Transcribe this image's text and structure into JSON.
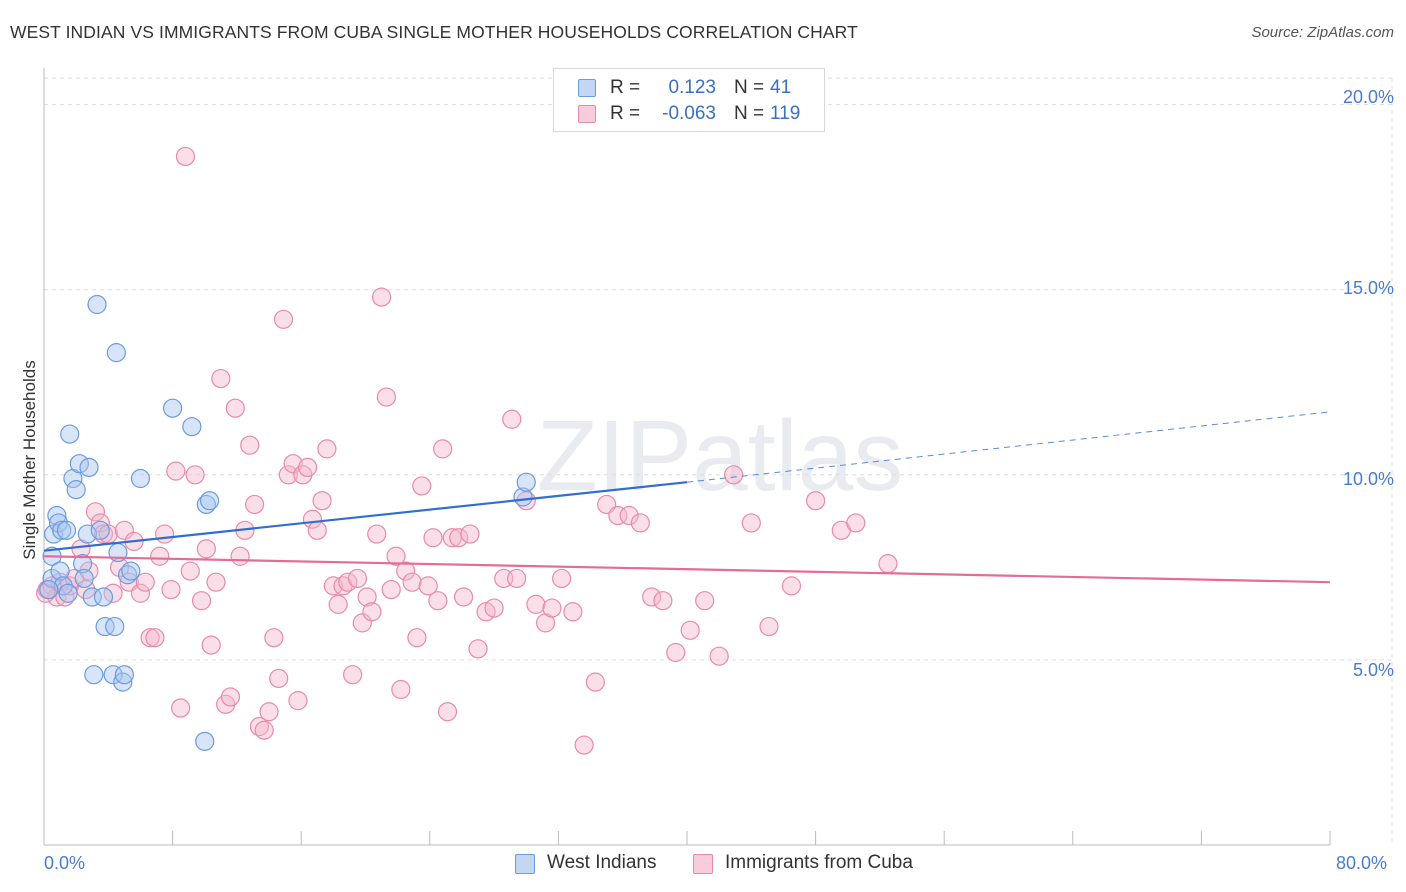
{
  "title": "WEST INDIAN VS IMMIGRANTS FROM CUBA SINGLE MOTHER HOUSEHOLDS CORRELATION CHART",
  "source": "Source: ZipAtlas.com",
  "watermark": "ZIPatlas",
  "colors": {
    "blue_fill": "#a9c6f0",
    "blue_stroke": "#6b9be0",
    "blue_line": "#2f6fd0",
    "pink_fill": "#f5b8cc",
    "pink_stroke": "#e88aaa",
    "pink_line": "#e46c95",
    "grid": "#dddddd",
    "tick_text": "#4a7bd0"
  },
  "legend": {
    "rows": [
      {
        "r_label": "R =",
        "r_value": "0.123",
        "n_label": "N =",
        "n_value": "41"
      },
      {
        "r_label": "R =",
        "r_value": "-0.063",
        "n_label": "N =",
        "n_value": "119"
      }
    ]
  },
  "bottom_legend": [
    "West Indians",
    "Immigrants from Cuba"
  ],
  "chart_data": {
    "type": "scatter",
    "title": "WEST INDIAN VS IMMIGRANTS FROM CUBA SINGLE MOTHER HOUSEHOLDS CORRELATION CHART",
    "xlabel": "",
    "ylabel": "Single Mother Households",
    "xlim": [
      0,
      80
    ],
    "ylim": [
      0,
      20.8
    ],
    "x_tick_labels": [
      "0.0%",
      "80.0%"
    ],
    "y_ticks": [
      5,
      10,
      15,
      20
    ],
    "y_tick_labels": [
      "5.0%",
      "10.0%",
      "15.0%",
      "20.0%"
    ],
    "grid": true,
    "legend_placement": "top-center",
    "series": [
      {
        "name": "West Indians",
        "R": 0.123,
        "N": 41,
        "trend": {
          "x0": 0,
          "y0": 7.95,
          "x1": 40,
          "y1": 9.8,
          "dashed_to_x": 80,
          "dashed_to_y": 11.7
        },
        "points": [
          [
            0.5,
            7.2
          ],
          [
            0.5,
            7.8
          ],
          [
            0.6,
            8.4
          ],
          [
            0.8,
            8.9
          ],
          [
            0.9,
            8.7
          ],
          [
            1.0,
            7.4
          ],
          [
            1.1,
            8.5
          ],
          [
            1.2,
            7.0
          ],
          [
            1.4,
            8.5
          ],
          [
            1.5,
            6.8
          ],
          [
            1.6,
            11.1
          ],
          [
            1.8,
            9.9
          ],
          [
            2.0,
            9.6
          ],
          [
            2.2,
            10.3
          ],
          [
            2.4,
            7.6
          ],
          [
            2.5,
            7.2
          ],
          [
            2.7,
            8.4
          ],
          [
            2.8,
            10.2
          ],
          [
            3.0,
            6.7
          ],
          [
            3.1,
            4.6
          ],
          [
            3.3,
            14.6
          ],
          [
            3.5,
            8.5
          ],
          [
            3.7,
            6.7
          ],
          [
            3.8,
            5.9
          ],
          [
            4.3,
            4.6
          ],
          [
            4.4,
            5.9
          ],
          [
            4.5,
            13.3
          ],
          [
            4.6,
            7.9
          ],
          [
            4.9,
            4.4
          ],
          [
            5.0,
            4.6
          ],
          [
            5.2,
            7.3
          ],
          [
            5.4,
            7.4
          ],
          [
            6.0,
            9.9
          ],
          [
            8.0,
            11.8
          ],
          [
            9.2,
            11.3
          ],
          [
            10.0,
            2.8
          ],
          [
            10.1,
            9.2
          ],
          [
            10.3,
            9.3
          ],
          [
            29.8,
            9.4
          ],
          [
            30.0,
            9.8
          ],
          [
            0.3,
            6.9
          ]
        ]
      },
      {
        "name": "Immigrants from Cuba",
        "R": -0.063,
        "N": 119,
        "trend": {
          "x0": 0,
          "y0": 7.8,
          "x1": 80,
          "y1": 7.1
        },
        "points": [
          [
            0.2,
            6.9
          ],
          [
            0.5,
            7.0
          ],
          [
            0.8,
            6.7
          ],
          [
            1.0,
            7.1
          ],
          [
            1.3,
            6.7
          ],
          [
            1.6,
            7.0
          ],
          [
            1.9,
            7.2
          ],
          [
            2.3,
            8.0
          ],
          [
            2.6,
            6.9
          ],
          [
            2.8,
            7.4
          ],
          [
            3.2,
            9.0
          ],
          [
            3.5,
            8.7
          ],
          [
            3.7,
            8.4
          ],
          [
            4.0,
            8.4
          ],
          [
            4.3,
            6.8
          ],
          [
            4.7,
            7.5
          ],
          [
            5.0,
            8.5
          ],
          [
            5.3,
            7.1
          ],
          [
            5.6,
            8.2
          ],
          [
            6.0,
            6.8
          ],
          [
            6.3,
            7.1
          ],
          [
            6.6,
            5.6
          ],
          [
            6.9,
            5.6
          ],
          [
            7.2,
            7.8
          ],
          [
            7.5,
            8.4
          ],
          [
            7.9,
            6.9
          ],
          [
            8.2,
            10.1
          ],
          [
            8.5,
            3.7
          ],
          [
            8.8,
            18.6
          ],
          [
            9.1,
            7.4
          ],
          [
            9.4,
            10.0
          ],
          [
            9.8,
            6.6
          ],
          [
            10.1,
            8.0
          ],
          [
            10.4,
            5.4
          ],
          [
            10.7,
            7.1
          ],
          [
            11.0,
            12.6
          ],
          [
            11.3,
            3.8
          ],
          [
            11.6,
            4.0
          ],
          [
            11.9,
            11.8
          ],
          [
            12.2,
            7.8
          ],
          [
            12.5,
            8.5
          ],
          [
            12.8,
            10.8
          ],
          [
            13.1,
            9.2
          ],
          [
            13.4,
            3.2
          ],
          [
            13.7,
            3.1
          ],
          [
            14.0,
            3.6
          ],
          [
            14.3,
            5.6
          ],
          [
            14.6,
            4.5
          ],
          [
            14.9,
            14.2
          ],
          [
            15.2,
            10.0
          ],
          [
            15.5,
            10.3
          ],
          [
            15.8,
            3.9
          ],
          [
            16.1,
            10.0
          ],
          [
            16.4,
            10.2
          ],
          [
            16.7,
            8.8
          ],
          [
            17.0,
            8.5
          ],
          [
            17.3,
            9.3
          ],
          [
            17.6,
            10.7
          ],
          [
            18.0,
            7.0
          ],
          [
            18.3,
            6.5
          ],
          [
            18.6,
            7.0
          ],
          [
            18.9,
            7.1
          ],
          [
            19.2,
            4.6
          ],
          [
            19.5,
            7.2
          ],
          [
            19.8,
            6.0
          ],
          [
            20.1,
            6.7
          ],
          [
            20.4,
            6.3
          ],
          [
            20.7,
            8.4
          ],
          [
            21.0,
            14.8
          ],
          [
            21.3,
            12.1
          ],
          [
            21.6,
            6.9
          ],
          [
            21.9,
            7.8
          ],
          [
            22.2,
            4.2
          ],
          [
            22.5,
            7.4
          ],
          [
            22.9,
            7.1
          ],
          [
            23.2,
            5.6
          ],
          [
            23.5,
            9.7
          ],
          [
            23.9,
            7.0
          ],
          [
            24.2,
            8.3
          ],
          [
            24.5,
            6.6
          ],
          [
            24.8,
            10.7
          ],
          [
            25.1,
            3.6
          ],
          [
            25.4,
            8.3
          ],
          [
            25.8,
            8.3
          ],
          [
            26.1,
            6.7
          ],
          [
            26.5,
            8.4
          ],
          [
            27.0,
            5.3
          ],
          [
            27.5,
            6.3
          ],
          [
            28.0,
            6.4
          ],
          [
            28.6,
            7.2
          ],
          [
            29.1,
            11.5
          ],
          [
            29.4,
            7.2
          ],
          [
            30.0,
            9.3
          ],
          [
            30.6,
            6.5
          ],
          [
            31.2,
            6.0
          ],
          [
            31.6,
            6.4
          ],
          [
            32.2,
            7.2
          ],
          [
            32.9,
            6.3
          ],
          [
            33.6,
            2.7
          ],
          [
            34.3,
            4.4
          ],
          [
            35.0,
            9.2
          ],
          [
            35.7,
            8.9
          ],
          [
            36.4,
            8.9
          ],
          [
            37.1,
            8.7
          ],
          [
            37.8,
            6.7
          ],
          [
            38.5,
            6.6
          ],
          [
            39.3,
            5.2
          ],
          [
            40.2,
            5.8
          ],
          [
            41.1,
            6.6
          ],
          [
            42.0,
            5.1
          ],
          [
            42.9,
            10.0
          ],
          [
            44.0,
            8.7
          ],
          [
            45.1,
            5.9
          ],
          [
            46.5,
            7.0
          ],
          [
            48.0,
            9.3
          ],
          [
            49.6,
            8.5
          ],
          [
            50.5,
            8.7
          ],
          [
            52.5,
            7.6
          ],
          [
            0.1,
            6.8
          ]
        ]
      }
    ]
  }
}
